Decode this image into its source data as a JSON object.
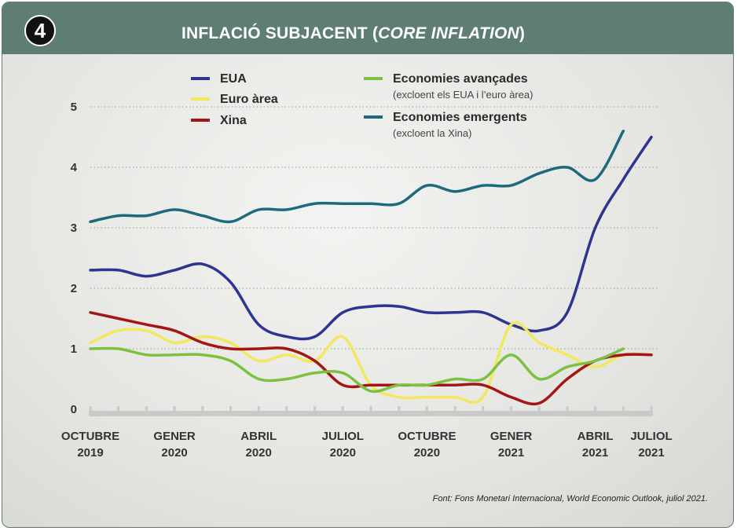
{
  "header": {
    "badge_number": "4",
    "title_main": "INFLACIÓ SUBJACENT (",
    "title_italic": "CORE INFLATION",
    "title_close": ")"
  },
  "source": "Font: Fons Monetari Internacional, World Economic Outlook, juliol 2021.",
  "colors": {
    "header_bg": "#5e7d74",
    "eua": "#2e3590",
    "euro": "#f2e85e",
    "xina": "#a31616",
    "avancades": "#7cc242",
    "emergents": "#1d6a7c"
  },
  "chart_data": {
    "type": "line",
    "title": "INFLACIÓ SUBJACENT (CORE INFLATION)",
    "ylim": [
      0,
      5
    ],
    "yticks": [
      0,
      1,
      2,
      3,
      4,
      5
    ],
    "grid": "horizontal dotted",
    "legend_position": "top",
    "x_labels": [
      {
        "month": 0,
        "line1": "OCTUBRE",
        "line2": "2019"
      },
      {
        "month": 3,
        "line1": "GENER",
        "line2": "2020"
      },
      {
        "month": 6,
        "line1": "ABRIL",
        "line2": "2020"
      },
      {
        "month": 9,
        "line1": "JULIOL",
        "line2": "2020"
      },
      {
        "month": 12,
        "line1": "OCTUBRE",
        "line2": "2020"
      },
      {
        "month": 15,
        "line1": "GENER",
        "line2": "2021"
      },
      {
        "month": 18,
        "line1": "ABRIL",
        "line2": "2021"
      },
      {
        "month": 20,
        "line1": "JULIOL",
        "line2": "2021"
      }
    ],
    "series": [
      {
        "key": "emergents",
        "name": "Economies emergents",
        "sub": "(excloent la Xina)",
        "values": [
          3.1,
          3.2,
          3.2,
          3.3,
          3.2,
          3.1,
          3.3,
          3.3,
          3.4,
          3.4,
          3.4,
          3.4,
          3.7,
          3.6,
          3.7,
          3.7,
          3.9,
          4.0,
          3.8,
          4.6
        ]
      },
      {
        "key": "eua",
        "name": "EUA",
        "values": [
          2.3,
          2.3,
          2.2,
          2.3,
          2.4,
          2.1,
          1.4,
          1.2,
          1.2,
          1.6,
          1.7,
          1.7,
          1.6,
          1.6,
          1.6,
          1.4,
          1.3,
          1.6,
          3.0,
          3.8,
          4.5
        ]
      },
      {
        "key": "euro",
        "name": "Euro àrea",
        "values": [
          1.1,
          1.3,
          1.3,
          1.1,
          1.2,
          1.1,
          0.8,
          0.9,
          0.8,
          1.2,
          0.4,
          0.2,
          0.2,
          0.2,
          0.2,
          1.4,
          1.1,
          0.9,
          0.7,
          0.9,
          0.9
        ]
      },
      {
        "key": "xina",
        "name": "Xina",
        "values": [
          1.6,
          1.5,
          1.4,
          1.3,
          1.1,
          1.0,
          1.0,
          1.0,
          0.8,
          0.4,
          0.4,
          0.4,
          0.4,
          0.4,
          0.4,
          0.2,
          0.1,
          0.5,
          0.8,
          0.9,
          0.9
        ]
      },
      {
        "key": "avancades",
        "name": "Economies avançades",
        "sub": "(excloent els EUA i l’euro àrea)",
        "values": [
          1.0,
          1.0,
          0.9,
          0.9,
          0.9,
          0.8,
          0.5,
          0.5,
          0.6,
          0.6,
          0.3,
          0.4,
          0.4,
          0.5,
          0.5,
          0.9,
          0.5,
          0.7,
          0.8,
          1.0
        ]
      }
    ]
  }
}
